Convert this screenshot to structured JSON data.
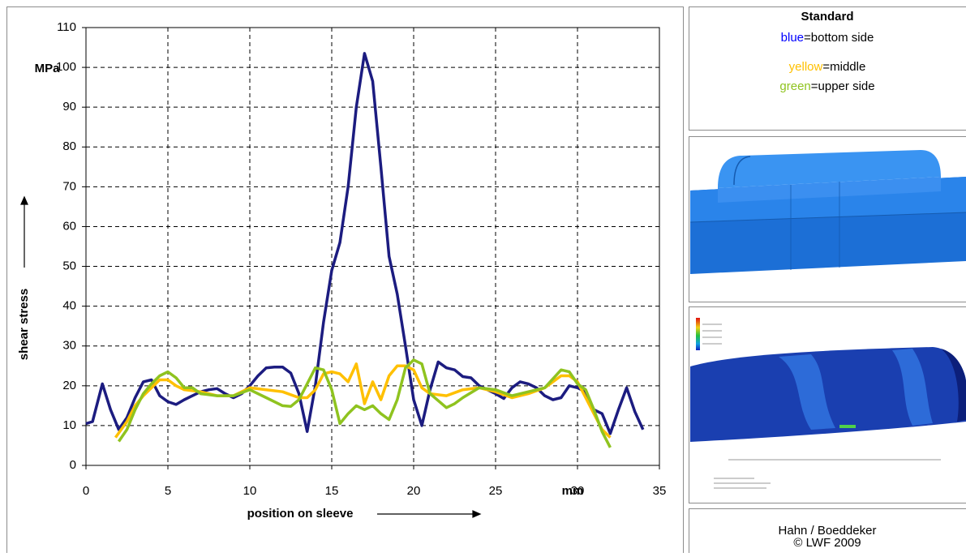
{
  "chart_data": {
    "type": "line",
    "y_unit": "MPa",
    "x_unit": "mm",
    "xlabel": "position on sleeve",
    "ylabel": "shear stress",
    "xlim": [
      0,
      35
    ],
    "ylim": [
      0,
      110
    ],
    "xticks": [
      0,
      5,
      10,
      15,
      20,
      25,
      30,
      35
    ],
    "yticks": [
      0,
      10,
      20,
      30,
      40,
      50,
      60,
      70,
      80,
      90,
      100,
      110
    ],
    "grid": true,
    "series": [
      {
        "name": "bottom side",
        "key": "blue",
        "key_color": "#0000ff",
        "color": "#1c1c80",
        "x": [
          0,
          0.4,
          1,
          1.5,
          2,
          2.5,
          3,
          3.5,
          4,
          4.5,
          5,
          5.5,
          6,
          6.5,
          7,
          7.5,
          8,
          8.5,
          9,
          9.5,
          10,
          10.5,
          11,
          11.5,
          12,
          12.5,
          13,
          13.5,
          14,
          14.5,
          15,
          15.5,
          16,
          16.5,
          17,
          17.5,
          18,
          18.5,
          19,
          19.5,
          20,
          20.5,
          21,
          21.5,
          22,
          22.5,
          23,
          23.5,
          24,
          24.5,
          25,
          25.5,
          26,
          26.5,
          27,
          27.5,
          28,
          28.5,
          29,
          29.5,
          30,
          30.5,
          31,
          31.5,
          32,
          32.5,
          33,
          33.5,
          34
        ],
        "values": [
          10.5,
          11,
          20.5,
          14,
          9,
          12,
          17,
          21,
          21.5,
          17.5,
          16,
          15.3,
          16.5,
          17.5,
          18.5,
          19,
          19.3,
          18,
          17,
          18,
          20,
          22.5,
          24.5,
          24.7,
          24.7,
          23.2,
          18,
          8.5,
          20,
          36,
          49,
          56,
          70,
          90,
          103.5,
          96.5,
          75,
          52.5,
          43,
          30,
          16.5,
          10,
          19,
          26,
          24.5,
          24,
          22.3,
          22,
          20,
          19,
          18,
          16.8,
          19.5,
          21,
          20.5,
          19.5,
          17.5,
          16.5,
          17,
          20,
          19.5,
          18.5,
          14,
          13,
          8,
          14,
          19.5,
          13.5,
          9
        ]
      },
      {
        "name": "middle",
        "key": "yellow",
        "key_color": "#ffc000",
        "color": "#ffc000",
        "x": [
          1.8,
          2.5,
          3,
          3.5,
          4,
          4.5,
          5,
          5.5,
          6,
          7,
          8,
          9,
          10,
          11,
          12,
          13,
          13.5,
          14,
          14.5,
          15,
          15.5,
          16,
          16.5,
          17,
          17.5,
          18,
          18.5,
          19,
          19.5,
          20,
          20.5,
          21,
          22,
          23,
          24,
          25,
          26,
          27,
          28,
          29,
          29.5,
          30,
          30.5,
          31,
          31.5,
          32
        ],
        "values": [
          7,
          11,
          15,
          17.5,
          19.5,
          21.5,
          21.5,
          20,
          19,
          18.5,
          17.5,
          17.5,
          19.5,
          19,
          18.5,
          17,
          17,
          19,
          23,
          23.5,
          23,
          21,
          25.5,
          15.5,
          21,
          16.5,
          22.5,
          25,
          25,
          24,
          19.5,
          18,
          17.5,
          19,
          19.5,
          18.5,
          17,
          18,
          19.5,
          22.5,
          22.5,
          21,
          17,
          13,
          9,
          7
        ]
      },
      {
        "name": "upper side",
        "key": "green",
        "key_color": "#8fc31f",
        "color": "#8fc31f",
        "x": [
          2,
          2.5,
          3,
          3.5,
          4,
          4.5,
          5,
          5.5,
          6,
          6.5,
          7,
          8,
          9,
          10,
          11,
          12,
          12.5,
          13,
          13.5,
          14,
          14.5,
          15,
          15.5,
          16,
          16.5,
          17,
          17.5,
          18,
          18.5,
          19,
          19.5,
          20,
          20.5,
          21,
          22,
          22.5,
          23,
          24,
          25,
          26,
          27,
          28,
          29,
          29.5,
          30,
          30.5,
          31,
          31.5,
          32
        ],
        "values": [
          6,
          9,
          14,
          18,
          20.5,
          22.5,
          23.5,
          22,
          19.5,
          19.5,
          18,
          17.5,
          17.5,
          19,
          17,
          15,
          14.8,
          16.5,
          20.5,
          24.5,
          24,
          19,
          10.5,
          13,
          15,
          14,
          15,
          13,
          11.5,
          16.5,
          24.5,
          26.5,
          25.5,
          18,
          14.5,
          15.5,
          17,
          19.5,
          19,
          17.5,
          18.5,
          19.5,
          24,
          23.5,
          20.5,
          19,
          14,
          8.5,
          4.5
        ]
      }
    ]
  },
  "legend_title": "Standard",
  "legend_separator": "=",
  "credits": [
    "Hahn / Boeddeker",
    "© LWF 2009"
  ]
}
